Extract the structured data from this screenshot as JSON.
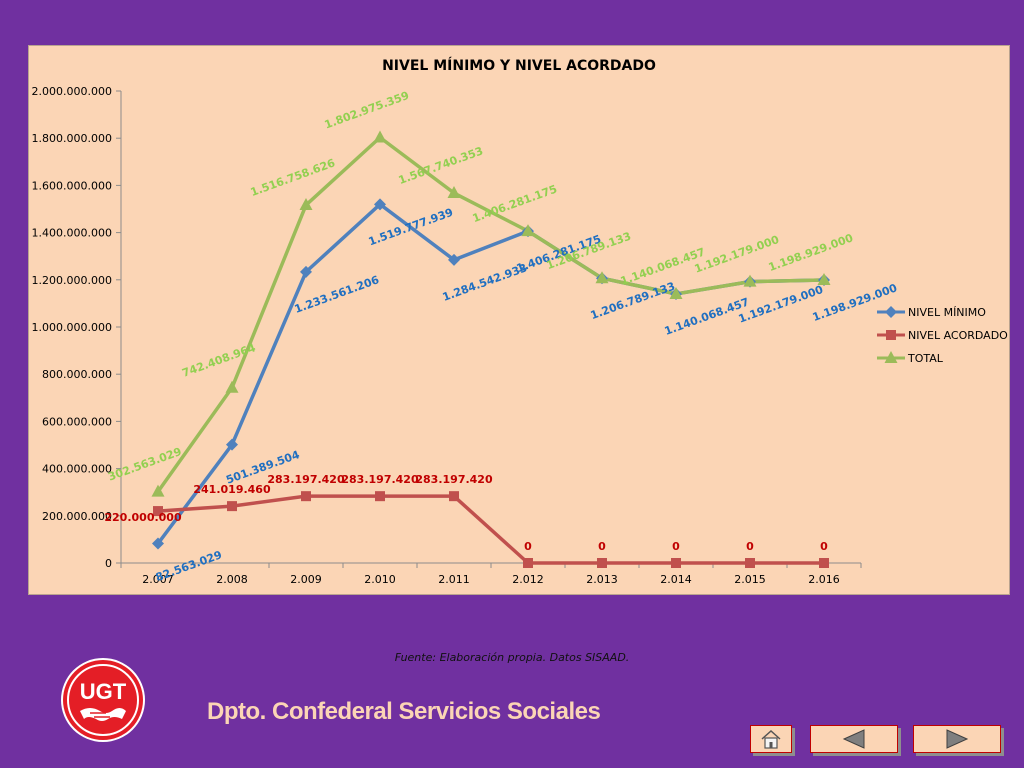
{
  "chart_data": {
    "type": "line",
    "title": "NIVEL MÍNIMO Y NIVEL ACORDADO",
    "categories": [
      "2.007",
      "2.008",
      "2.009",
      "2.010",
      "2.011",
      "2.012",
      "2.013",
      "2.014",
      "2.015",
      "2.016"
    ],
    "ylim": [
      0,
      2000000000
    ],
    "y_ticks": [
      {
        "value": 0,
        "label": "0"
      },
      {
        "value": 200000000,
        "label": "200.000.000"
      },
      {
        "value": 400000000,
        "label": "400.000.000"
      },
      {
        "value": 600000000,
        "label": "600.000.000"
      },
      {
        "value": 800000000,
        "label": "800.000.000"
      },
      {
        "value": 1000000000,
        "label": "1.000.000.000"
      },
      {
        "value": 1200000000,
        "label": "1.200.000.000"
      },
      {
        "value": 1400000000,
        "label": "1.400.000.000"
      },
      {
        "value": 1600000000,
        "label": "1.600.000.000"
      },
      {
        "value": 1800000000,
        "label": "1.800.000.000"
      },
      {
        "value": 2000000000,
        "label": "2.000.000.000"
      }
    ],
    "grid": false,
    "legend_position": "right",
    "series": [
      {
        "name": "NIVEL MÍNIMO",
        "color": "#4f81bd",
        "label_color": "#1f6fc1",
        "marker": "diamond",
        "values": [
          82563029,
          501389504,
          1233561206,
          1519777939,
          1284542933,
          1406281175,
          1206789133,
          1140068457,
          1192179000,
          1198929000
        ],
        "labels": [
          "82.563.029",
          "501.389.504",
          "1.233.561.206",
          "1.519.777.939",
          "1.284.542.933",
          "1.406.281.175",
          "1.206.789.133",
          "1.140.068.457",
          "1.192.179.000",
          "1.198.929.000"
        ]
      },
      {
        "name": "NIVEL ACORDADO",
        "color": "#c0504d",
        "label_color": "#c00000",
        "marker": "square",
        "values": [
          220000000,
          241019460,
          283197420,
          283197420,
          283197420,
          0,
          0,
          0,
          0,
          0
        ],
        "labels": [
          "220.000.000",
          "241.019.460",
          "283.197.420",
          "283.197.420",
          "283.197.420",
          "0",
          "0",
          "0",
          "0",
          "0"
        ]
      },
      {
        "name": "TOTAL",
        "color": "#9bbb59",
        "label_color": "#92d050",
        "marker": "triangle",
        "values": [
          302563029,
          742408964,
          1516758626,
          1802975359,
          1567740353,
          1406281175,
          1206789133,
          1140068457,
          1192179000,
          1198929000
        ],
        "labels": [
          "302.563.029",
          "742.408.964",
          "1.516.758.626",
          "1.802.975.359",
          "1.567.740.353",
          "1.406.281.175",
          "1.206.789.133",
          "1.140.068.457",
          "1.192.179.000",
          "1.198.929.000"
        ]
      }
    ]
  },
  "footer": {
    "source": "Fuente: Elaboración propia. Datos SISAAD.",
    "department": "Dpto. Confederal Servicios Sociales",
    "logo_text": "UGT"
  },
  "navigation": {
    "home_icon": "home-icon",
    "prev_icon": "triangle-left-icon",
    "next_icon": "triangle-right-icon"
  },
  "colors": {
    "background": "#7030a0",
    "chart_background": "#fbd5b5",
    "logo_red": "#e41e26",
    "department_text": "#fbd5b5"
  }
}
